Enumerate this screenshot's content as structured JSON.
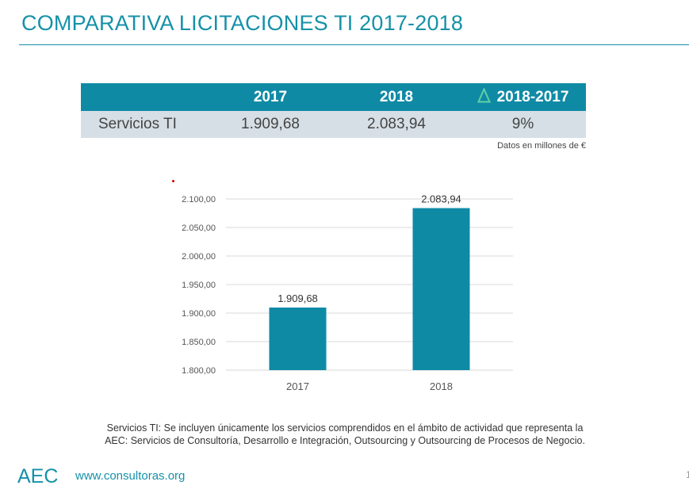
{
  "header": {
    "title": "COMPARATIVA LICITACIONES TI 2017-2018"
  },
  "summary_table": {
    "headers": [
      "",
      "2017",
      "2018",
      "2018-2017"
    ],
    "delta_icon": "delta-triangle-icon",
    "row": {
      "label": "Servicios TI",
      "v2017": "1.909,68",
      "v2018": "2.083,94",
      "change": "9%"
    },
    "units_note": "Datos en millones de €"
  },
  "chart_data": {
    "type": "bar",
    "title": "",
    "xlabel": "",
    "ylabel": "",
    "categories": [
      "2017",
      "2018"
    ],
    "values": [
      1909.68,
      2083.94
    ],
    "data_labels": [
      "1.909,68",
      "2.083,94"
    ],
    "ylim": [
      1800,
      2100
    ],
    "yticks": [
      1800,
      1850,
      1900,
      1950,
      2000,
      2050,
      2100
    ],
    "ytick_labels": [
      "1.800,00",
      "1.850,00",
      "1.900,00",
      "1.950,00",
      "2.000,00",
      "2.050,00",
      "2.100,00"
    ],
    "grid": true,
    "bar_color": "#0f8aa5"
  },
  "footnote": {
    "line1": "Servicios TI: Se incluyen únicamente los servicios comprendidos en el ámbito de actividad que representa la",
    "line2": "AEC: Servicios de Consultoría, Desarrollo e Integración, Outsourcing y Outsourcing de Procesos de Negocio."
  },
  "footer": {
    "logo_text": "AEC",
    "website": "www.consultoras.org",
    "page_number": "1"
  },
  "colors": {
    "accent": "#1591a8",
    "table_header": "#0f8aa5",
    "table_row": "#d6dfe5",
    "delta_icon": "#3aaa8a"
  }
}
